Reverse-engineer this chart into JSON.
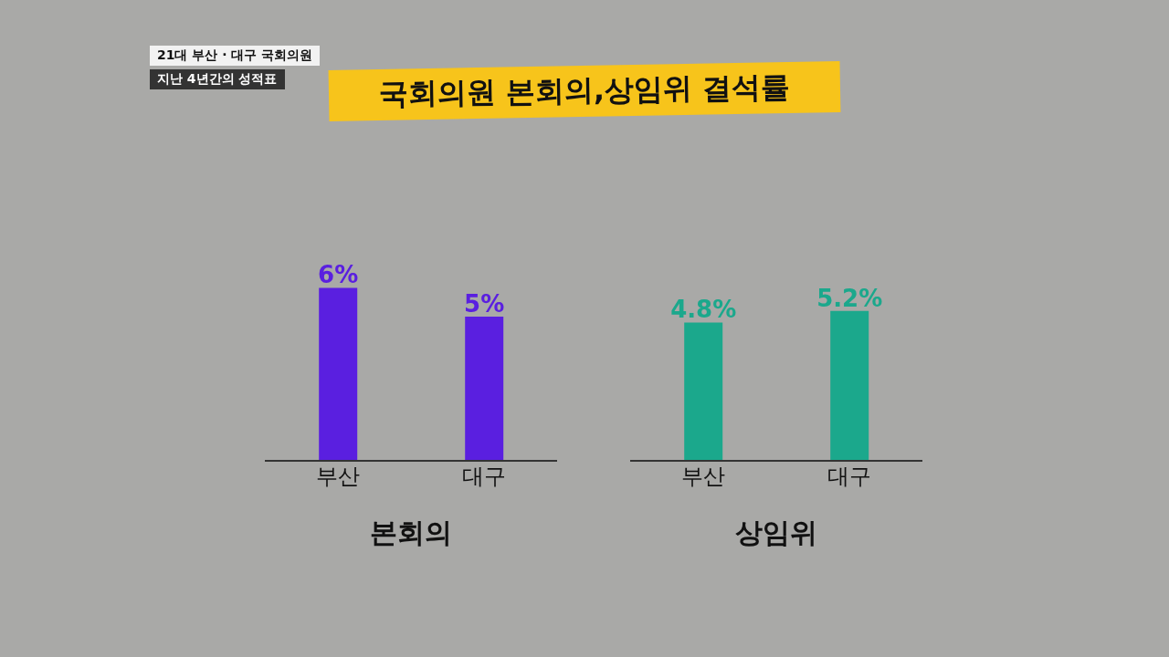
{
  "chart_data": [
    {
      "type": "bar",
      "title": "국회의원 본회의,상임위 결석률",
      "annotations": [
        "21대 부산 · 대구 국회의원",
        "지난 4년간의 성적표"
      ],
      "categories": [
        "부산",
        "대구"
      ],
      "values": [
        6,
        5
      ],
      "value_labels": [
        "6%",
        "5%"
      ],
      "color": "#5a1fe0",
      "xlabel": "본회의"
    },
    {
      "type": "bar",
      "categories": [
        "부산",
        "대구"
      ],
      "values": [
        4.8,
        5.2
      ],
      "value_labels": [
        "4.8%",
        "5.2%"
      ],
      "color": "#1ba88c",
      "xlabel": "상임위"
    }
  ]
}
